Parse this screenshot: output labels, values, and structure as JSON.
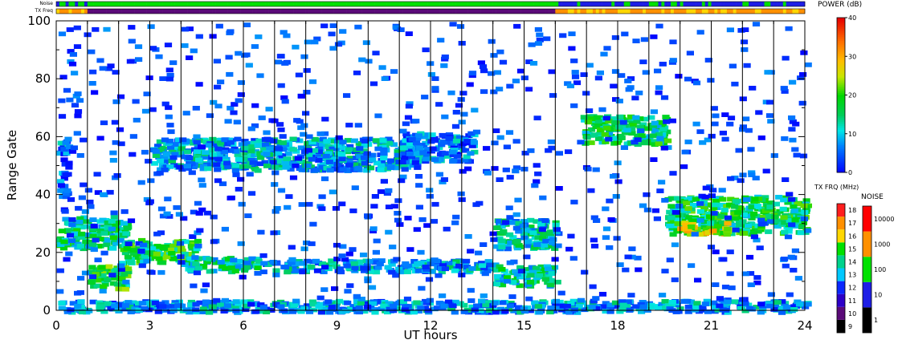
{
  "status_bars": {
    "noise_label": "Noise",
    "txfreq_label": "TX Freq"
  },
  "chart_data": {
    "type": "heatmap",
    "title": "",
    "xlabel": "UT hours",
    "ylabel": "Range Gate",
    "xlim": [
      0,
      24
    ],
    "ylim": [
      0,
      100
    ],
    "xticks": [
      0,
      3,
      6,
      9,
      12,
      15,
      18,
      21,
      24
    ],
    "yticks": [
      0,
      20,
      40,
      60,
      80,
      100
    ],
    "hour_lines": [
      1,
      2,
      3,
      4,
      5,
      6,
      7,
      8,
      9,
      10,
      11,
      12,
      13,
      14,
      15,
      16,
      17,
      18,
      19,
      20,
      21,
      22,
      23
    ],
    "power_colorbar": {
      "label": "POWER (dB)",
      "range": [
        0,
        40
      ],
      "ticks": [
        0,
        10,
        20,
        30,
        40
      ]
    },
    "txfreq_colorbar": {
      "label": "TX FRQ (MHz)",
      "ticks": [
        9,
        10,
        11,
        12,
        13,
        14,
        15,
        16,
        17,
        18
      ],
      "colors": [
        "#000000",
        "#5a0a78",
        "#2d00c8",
        "#0a28ff",
        "#00c8ff",
        "#00d28c",
        "#00e100",
        "#ffd700",
        "#ff9000",
        "#ff1e1e"
      ]
    },
    "noise_colorbar": {
      "label": "NOISE",
      "ticks": [
        "1",
        "10",
        "100",
        "1000",
        "10000"
      ],
      "colors": [
        "#000000",
        "#1e1ee6",
        "#00e100",
        "#ff9000",
        "#ff0000"
      ]
    },
    "echo_bands": [
      {
        "t0": 0.0,
        "t1": 2.2,
        "r0": 22,
        "r1": 33,
        "power": 14
      },
      {
        "t0": 1.0,
        "t1": 2.2,
        "r0": 8,
        "r1": 16,
        "power": 18
      },
      {
        "t0": 2.0,
        "t1": 4.5,
        "r0": 17,
        "r1": 25,
        "power": 17
      },
      {
        "t0": 4.0,
        "t1": 6.5,
        "r0": 14,
        "r1": 19,
        "power": 13
      },
      {
        "t0": 6.5,
        "t1": 14.0,
        "r0": 14,
        "r1": 18,
        "power": 9
      },
      {
        "t0": 14.0,
        "t1": 16.0,
        "r0": 9,
        "r1": 16,
        "power": 13
      },
      {
        "t0": 14.0,
        "t1": 16.0,
        "r0": 22,
        "r1": 32,
        "power": 11
      },
      {
        "t0": 3.0,
        "t1": 11.5,
        "r0": 49,
        "r1": 60,
        "power": 9
      },
      {
        "t0": 11.0,
        "t1": 13.3,
        "r0": 52,
        "r1": 62,
        "power": 7
      },
      {
        "t0": 16.8,
        "t1": 19.5,
        "r0": 58,
        "r1": 68,
        "power": 15
      },
      {
        "t0": 19.5,
        "t1": 24.0,
        "r0": 27,
        "r1": 40,
        "power": 16
      },
      {
        "t0": 19.8,
        "t1": 21.5,
        "r0": 27,
        "r1": 31,
        "power": 26
      },
      {
        "t0": 0.0,
        "t1": 24.0,
        "r0": 0,
        "r1": 4,
        "power": 8
      },
      {
        "t0": 0.0,
        "t1": 0.3,
        "r0": 40,
        "r1": 60,
        "power": 6
      }
    ]
  }
}
